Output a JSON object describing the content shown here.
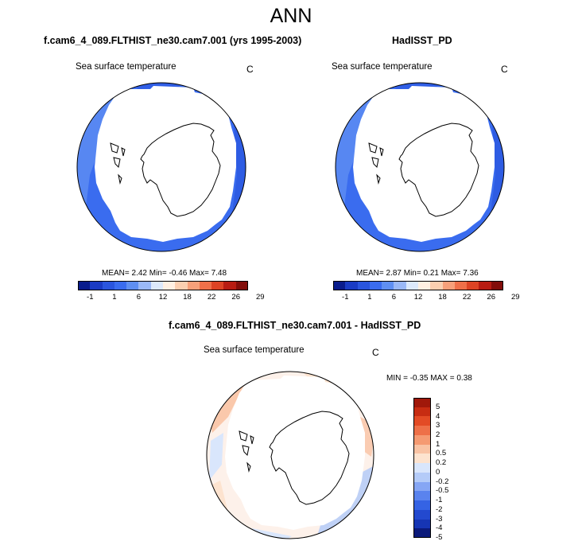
{
  "page": {
    "title": "ANN"
  },
  "colors": {
    "full_scale": [
      "#0a1c8c",
      "#1a3bc4",
      "#2a55de",
      "#3a6cef",
      "#5f8ff2",
      "#9ab8f6",
      "#dce9fb",
      "#fff0e2",
      "#fbcfb0",
      "#f7a07a",
      "#ef7049",
      "#dd4425",
      "#b81c12",
      "#820d0a"
    ],
    "diff_scale": [
      "#0b1a7a",
      "#1635b4",
      "#2349cf",
      "#3563e4",
      "#5a83ee",
      "#86a6f4",
      "#b4cbf8",
      "#d9e6fc",
      "#fde3cf",
      "#f9c3a4",
      "#f59a72",
      "#ee7048",
      "#e34b25",
      "#c72c12",
      "#a0180a"
    ],
    "ocean_blue": "#3a6cef",
    "ocean_blue_dark": "#2a55de",
    "ocean_blue_light": "#5f8ff2"
  },
  "panels": [
    {
      "title": "f.cam6_4_089.FLTHIST_ne30.cam7.001 (yrs 1995-2003)",
      "variable": "Sea surface temperature",
      "unit": "C",
      "stats": "MEAN=   2.42   Min=  -0.46   Max=   7.48",
      "ticks": [
        "-1",
        "1",
        "6",
        "12",
        "18",
        "22",
        "26",
        "29"
      ]
    },
    {
      "title": "HadISST_PD",
      "variable": "Sea surface temperature",
      "unit": "C",
      "stats": "MEAN=   2.87   Min=   0.21   Max=   7.36",
      "ticks": [
        "-1",
        "1",
        "6",
        "12",
        "18",
        "22",
        "26",
        "29"
      ]
    }
  ],
  "diff": {
    "title": "f.cam6_4_089.FLTHIST_ne30.cam7.001 - HadISST_PD",
    "variable": "Sea surface temperature",
    "unit": "C",
    "stats": "MIN =  -0.35  MAX =   0.38",
    "ticks": [
      "5",
      "4",
      "3",
      "2",
      "1",
      "0.5",
      "0.2",
      "0",
      "-0.2",
      "-0.5",
      "-1",
      "-2",
      "-3",
      "-4",
      "-5"
    ]
  }
}
